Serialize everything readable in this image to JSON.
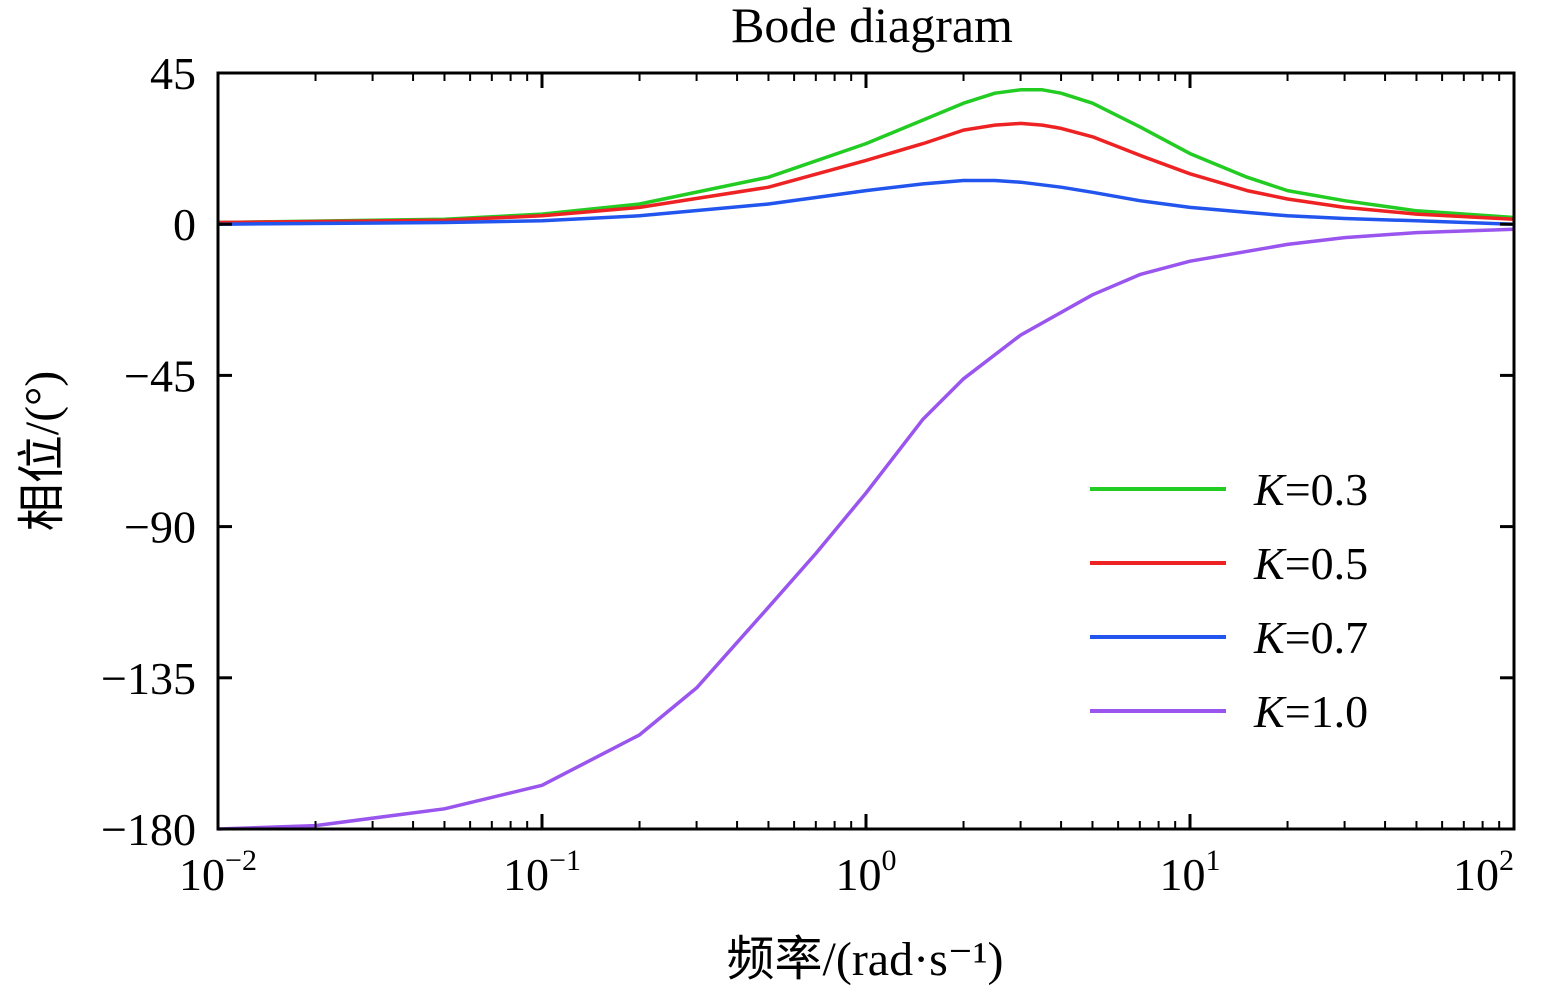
{
  "chart_data": {
    "type": "line",
    "title": "Bode diagram",
    "xlabel": "频率/(rad·s⁻¹)",
    "ylabel": "相位/(°)",
    "xscale": "log",
    "xlim": [
      0.01,
      100
    ],
    "ylim": [
      -180,
      45
    ],
    "x_ticks": [
      {
        "base": "10",
        "exp": "−2"
      },
      {
        "base": "10",
        "exp": "−1"
      },
      {
        "base": "10",
        "exp": "0"
      },
      {
        "base": "10",
        "exp": "1"
      },
      {
        "base": "10",
        "exp": "2"
      }
    ],
    "y_ticks": [
      "45",
      "0",
      "−45",
      "−90",
      "−135",
      "−180"
    ],
    "y_tick_values": [
      45,
      0,
      -45,
      -90,
      -135,
      -180
    ],
    "legend": {
      "position": "right-middle",
      "prefix": "K"
    },
    "grid": false,
    "series": [
      {
        "name": "=0.3",
        "color": "#22cc22",
        "x": [
          0.01,
          0.05,
          0.1,
          0.2,
          0.5,
          1.0,
          1.5,
          2.0,
          2.5,
          3.0,
          3.5,
          4.0,
          5.0,
          7.0,
          10,
          15,
          20,
          30,
          50,
          100
        ],
        "y": [
          0.5,
          1.5,
          3,
          6,
          14,
          24,
          31,
          36,
          39,
          40,
          40,
          39,
          36,
          29,
          21,
          14,
          10,
          7,
          4,
          2
        ]
      },
      {
        "name": "=0.5",
        "color": "#ee2222",
        "x": [
          0.01,
          0.05,
          0.1,
          0.2,
          0.5,
          1.0,
          1.5,
          2.0,
          2.5,
          3.0,
          3.5,
          4.0,
          5.0,
          7.0,
          10,
          15,
          20,
          30,
          50,
          100
        ],
        "y": [
          0.5,
          1.2,
          2.5,
          5,
          11,
          19,
          24,
          28,
          29.5,
          30,
          29.5,
          28.5,
          26,
          20.5,
          15,
          10,
          7.5,
          5,
          3,
          1.5
        ]
      },
      {
        "name": "=0.7",
        "color": "#2255ee",
        "x": [
          0.01,
          0.05,
          0.1,
          0.2,
          0.5,
          1.0,
          1.5,
          2.0,
          2.5,
          3.0,
          4.0,
          5.0,
          7.0,
          10,
          15,
          20,
          30,
          50,
          100
        ],
        "y": [
          0,
          0.5,
          1,
          2.5,
          6,
          10,
          12,
          13,
          13,
          12.5,
          11,
          9.5,
          7,
          5,
          3.5,
          2.5,
          1.7,
          1,
          0
        ]
      },
      {
        "name": "=1.0",
        "color": "#9955ee",
        "x": [
          0.01,
          0.02,
          0.05,
          0.1,
          0.2,
          0.3,
          0.5,
          0.7,
          1.0,
          1.5,
          2.0,
          3.0,
          5.0,
          7.0,
          10,
          20,
          30,
          50,
          100
        ],
        "y": [
          -180,
          -179,
          -174,
          -167,
          -152,
          -138,
          -114,
          -98,
          -80,
          -58,
          -46,
          -33,
          -21,
          -15,
          -11,
          -6,
          -4,
          -2.5,
          -1.5
        ]
      }
    ]
  }
}
